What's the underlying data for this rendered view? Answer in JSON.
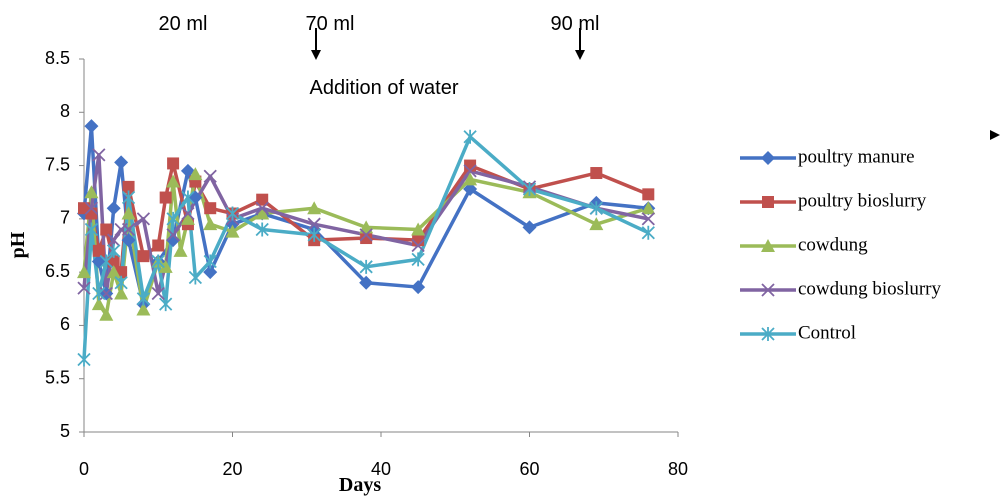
{
  "chart_data": {
    "type": "line",
    "annotations": [
      "20 ml",
      "70 ml",
      "90 ml",
      "Addition of water"
    ],
    "x_label": "Days",
    "y_label": "pH",
    "xlim": [
      0,
      80
    ],
    "xticks": [
      0,
      20,
      40,
      60,
      80
    ],
    "ylim": [
      5,
      8.5
    ],
    "yticks": [
      5,
      5.5,
      6,
      6.5,
      7,
      7.5,
      8,
      8.5
    ],
    "grid": false,
    "legend": "right",
    "series": [
      {
        "name": "poultry manure",
        "color": "#4472c4",
        "marker": "diamond",
        "x": [
          0,
          1,
          2,
          3,
          4,
          5,
          6,
          8,
          10,
          12,
          14,
          15,
          17,
          20,
          24,
          31,
          38,
          45,
          52,
          60,
          69,
          76
        ],
        "values": [
          7.05,
          7.87,
          6.6,
          6.3,
          7.1,
          7.53,
          6.8,
          6.2,
          6.6,
          6.8,
          7.45,
          7.2,
          6.5,
          6.95,
          7.05,
          6.9,
          6.4,
          6.36,
          7.28,
          6.92,
          7.15,
          7.1
        ]
      },
      {
        "name": "poultry bioslurry",
        "color": "#c0504d",
        "marker": "square",
        "x": [
          0,
          1,
          2,
          3,
          4,
          5,
          6,
          8,
          10,
          11,
          12,
          14,
          15,
          17,
          20,
          24,
          31,
          38,
          45,
          52,
          60,
          69,
          76
        ],
        "values": [
          7.1,
          7.05,
          6.7,
          6.9,
          6.6,
          6.5,
          7.3,
          6.65,
          6.75,
          7.2,
          7.52,
          6.95,
          7.35,
          7.1,
          7.05,
          7.18,
          6.8,
          6.82,
          6.8,
          7.5,
          7.28,
          7.43,
          7.23
        ]
      },
      {
        "name": "cowdung",
        "color": "#9bbb59",
        "marker": "triangle",
        "x": [
          0,
          1,
          2,
          3,
          4,
          5,
          6,
          8,
          10,
          11,
          12,
          13,
          14,
          15,
          17,
          20,
          24,
          31,
          38,
          45,
          52,
          60,
          69,
          76
        ],
        "values": [
          6.5,
          7.25,
          6.2,
          6.1,
          6.5,
          6.3,
          7.05,
          6.15,
          6.6,
          6.55,
          7.35,
          6.7,
          7.0,
          7.42,
          6.95,
          6.88,
          7.05,
          7.1,
          6.92,
          6.9,
          7.37,
          7.25,
          6.95,
          7.1
        ]
      },
      {
        "name": "cowdung bioslurry",
        "color": "#8064a2",
        "marker": "x",
        "x": [
          0,
          1,
          2,
          3,
          4,
          5,
          6,
          8,
          10,
          12,
          14,
          17,
          20,
          24,
          31,
          38,
          45,
          52,
          60,
          69,
          76
        ],
        "values": [
          6.35,
          7.1,
          7.6,
          6.3,
          6.8,
          6.9,
          6.9,
          7.0,
          6.3,
          6.85,
          7.05,
          7.4,
          7.0,
          7.1,
          6.95,
          6.85,
          6.75,
          7.45,
          7.3,
          7.1,
          7.0
        ]
      },
      {
        "name": "Control",
        "color": "#4bacc6",
        "marker": "star",
        "x": [
          0,
          1,
          2,
          3,
          4,
          5,
          6,
          8,
          10,
          11,
          12,
          14,
          15,
          17,
          20,
          24,
          31,
          38,
          45,
          52,
          60,
          69,
          76
        ],
        "values": [
          5.68,
          6.9,
          6.3,
          6.6,
          6.7,
          6.4,
          7.2,
          6.25,
          6.6,
          6.2,
          7.0,
          7.2,
          6.45,
          6.6,
          7.05,
          6.9,
          6.85,
          6.55,
          6.62,
          7.77,
          7.28,
          7.1,
          6.87
        ]
      }
    ]
  }
}
